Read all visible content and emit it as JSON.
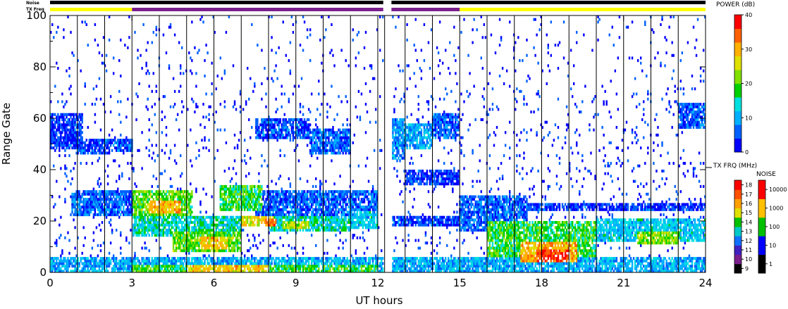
{
  "chart_data": {
    "type": "heatmap",
    "xlabel": "UT hours",
    "ylabel": "Range Gate",
    "xlim": [
      0,
      24
    ],
    "ylim": [
      0,
      100
    ],
    "xticks": [
      "0",
      "3",
      "6",
      "9",
      "12",
      "15",
      "18",
      "21",
      "24"
    ],
    "yticks": [
      "0",
      "20",
      "40",
      "60",
      "80",
      "100"
    ],
    "scan_boundaries_hours": [
      1.0,
      2.0,
      3.0,
      4.0,
      5.0,
      6.0,
      7.0,
      8.0,
      9.0,
      10.0,
      11.0,
      12.0,
      12.25,
      13.0,
      14.0,
      15.0,
      16.0,
      17.0,
      18.0,
      19.0,
      20.0,
      21.0,
      22.0,
      23.0
    ],
    "top_bars": {
      "noise_label": "Noise",
      "txfreq_label": "TX Freq",
      "noise_color": "#000000",
      "txfreq_segments": [
        {
          "start": 0,
          "end": 3.0,
          "color": "#ffff00"
        },
        {
          "start": 3.0,
          "end": 12.2,
          "color": "#7a1f8c"
        },
        {
          "start": 12.5,
          "end": 15.0,
          "color": "#7a1f8c"
        },
        {
          "start": 15.0,
          "end": 24,
          "color": "#ffff00"
        }
      ],
      "gap_hours": [
        12.2,
        12.5
      ]
    },
    "echo_regions": [
      {
        "t0": 0.0,
        "t1": 24.0,
        "g0": 0,
        "g1": 6,
        "level": 10
      },
      {
        "t0": 3.0,
        "t1": 12.0,
        "g0": 0,
        "g1": 3,
        "level": 18
      },
      {
        "t0": 5.0,
        "t1": 8.0,
        "g0": 0,
        "g1": 3,
        "level": 28
      },
      {
        "t0": 0.0,
        "t1": 1.2,
        "g0": 48,
        "g1": 62,
        "level": 4
      },
      {
        "t0": 1.0,
        "t1": 2.2,
        "g0": 46,
        "g1": 52,
        "level": 4
      },
      {
        "t0": 2.0,
        "t1": 3.0,
        "g0": 47,
        "g1": 52,
        "level": 6
      },
      {
        "t0": 3.0,
        "t1": 5.2,
        "g0": 22,
        "g1": 32,
        "level": 20
      },
      {
        "t0": 3.6,
        "t1": 4.8,
        "g0": 23,
        "g1": 28,
        "level": 30
      },
      {
        "t0": 0.8,
        "t1": 3.2,
        "g0": 22,
        "g1": 32,
        "level": 6
      },
      {
        "t0": 3.0,
        "t1": 7.0,
        "g0": 14,
        "g1": 22,
        "level": 14
      },
      {
        "t0": 4.5,
        "t1": 7.0,
        "g0": 8,
        "g1": 16,
        "level": 20
      },
      {
        "t0": 5.5,
        "t1": 6.5,
        "g0": 9,
        "g1": 14,
        "level": 28
      },
      {
        "t0": 6.2,
        "t1": 7.8,
        "g0": 24,
        "g1": 34,
        "level": 18
      },
      {
        "t0": 7.0,
        "t1": 8.2,
        "g0": 18,
        "g1": 22,
        "level": 26
      },
      {
        "t0": 7.8,
        "t1": 8.3,
        "g0": 18,
        "g1": 21,
        "level": 32
      },
      {
        "t0": 8.0,
        "t1": 11.0,
        "g0": 16,
        "g1": 22,
        "level": 14
      },
      {
        "t0": 8.5,
        "t1": 9.5,
        "g0": 17,
        "g1": 20,
        "level": 24
      },
      {
        "t0": 7.5,
        "t1": 12.0,
        "g0": 22,
        "g1": 32,
        "level": 6
      },
      {
        "t0": 11.0,
        "t1": 12.0,
        "g0": 17,
        "g1": 24,
        "level": 12
      },
      {
        "t0": 7.5,
        "t1": 9.5,
        "g0": 52,
        "g1": 60,
        "level": 5
      },
      {
        "t0": 9.5,
        "t1": 11.0,
        "g0": 46,
        "g1": 56,
        "level": 6
      },
      {
        "t0": 12.3,
        "t1": 13.0,
        "g0": 44,
        "g1": 60,
        "level": 8
      },
      {
        "t0": 13.0,
        "t1": 14.0,
        "g0": 48,
        "g1": 58,
        "level": 10
      },
      {
        "t0": 14.0,
        "t1": 15.0,
        "g0": 52,
        "g1": 62,
        "level": 6
      },
      {
        "t0": 12.3,
        "t1": 15.0,
        "g0": 18,
        "g1": 22,
        "level": 4
      },
      {
        "t0": 13.0,
        "t1": 15.0,
        "g0": 34,
        "g1": 40,
        "level": 4
      },
      {
        "t0": 15.0,
        "t1": 17.5,
        "g0": 16,
        "g1": 30,
        "level": 6
      },
      {
        "t0": 16.0,
        "t1": 20.0,
        "g0": 6,
        "g1": 20,
        "level": 18
      },
      {
        "t0": 17.2,
        "t1": 19.3,
        "g0": 4,
        "g1": 12,
        "level": 30
      },
      {
        "t0": 17.8,
        "t1": 19.0,
        "g0": 4,
        "g1": 9,
        "level": 36
      },
      {
        "t0": 15.0,
        "t1": 24.0,
        "g0": 24,
        "g1": 27,
        "level": 4
      },
      {
        "t0": 20.0,
        "t1": 24.0,
        "g0": 12,
        "g1": 21,
        "level": 12
      },
      {
        "t0": 21.5,
        "t1": 23.0,
        "g0": 11,
        "g1": 16,
        "level": 22
      },
      {
        "t0": 23.0,
        "t1": 24.0,
        "g0": 56,
        "g1": 66,
        "level": 5
      }
    ]
  },
  "colorbars": {
    "power": {
      "title": "POWER (dB)",
      "ticks": [
        "0",
        "10",
        "20",
        "30",
        "40"
      ],
      "colors": [
        "#0000ff",
        "#0060ff",
        "#00b0ff",
        "#00e0e0",
        "#00d000",
        "#80e000",
        "#e0e000",
        "#ffb000",
        "#ff6000",
        "#ff0000"
      ]
    },
    "txfreq": {
      "title": "TX FRQ (MHz)",
      "ticks": [
        "9",
        "10",
        "11",
        "12",
        "13",
        "14",
        "15",
        "16",
        "17",
        "18"
      ],
      "colors": [
        "#000000",
        "#7a1f8c",
        "#4020c0",
        "#1070ff",
        "#00c8c8",
        "#00c000",
        "#e0e000",
        "#ffa000",
        "#ff5000",
        "#ff0000"
      ]
    },
    "noise": {
      "title": "NOISE",
      "ticks": [
        "1",
        "10",
        "100",
        "1000",
        "10000"
      ],
      "colors": [
        "#000000",
        "#0000ff",
        "#00c000",
        "#ffc000",
        "#ff0000"
      ]
    }
  }
}
